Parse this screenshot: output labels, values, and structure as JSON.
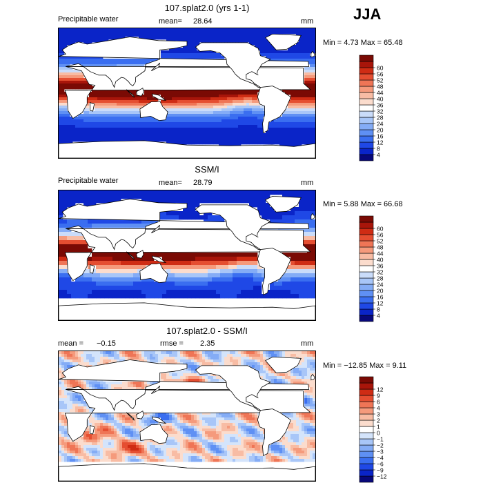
{
  "season": "JJA",
  "colors": {
    "full": [
      "#08087a",
      "#0a24c8",
      "#1f48e6",
      "#3a6ef0",
      "#5f90f4",
      "#84acf6",
      "#a8c6f8",
      "#cadcfa",
      "#ffffff",
      "#fbdccd",
      "#f8bca4",
      "#f59a7c",
      "#ef7556",
      "#e54e31",
      "#cf2c14",
      "#a8150a",
      "#7a0a04"
    ],
    "diff": [
      "#08087a",
      "#0a24c8",
      "#1f48e6",
      "#3a6ef0",
      "#5f90f4",
      "#84acf6",
      "#a8c6f8",
      "#d4e4fb",
      "#ffffff",
      "#fbdccd",
      "#f8bca4",
      "#f59a7c",
      "#ef7556",
      "#e54e31",
      "#cf2c14",
      "#a8150a",
      "#7a0a04"
    ]
  },
  "panels": [
    {
      "title": "107.splat2.0 (yrs 1-1)",
      "variable": "Precipitable water",
      "stat_label": "mean=",
      "stat_value": "28.64",
      "rmse_label": "",
      "rmse_value": "",
      "units": "mm",
      "minmax": "Min =   4.73  Max =   65.48",
      "colorbar": [
        "4",
        "8",
        "12",
        "16",
        "20",
        "24",
        "28",
        "32",
        "36",
        "40",
        "44",
        "48",
        "52",
        "56",
        "60"
      ],
      "kind": "full"
    },
    {
      "title": "SSM/I",
      "variable": "Precipitable water",
      "stat_label": "mean=",
      "stat_value": "28.79",
      "rmse_label": "",
      "rmse_value": "",
      "units": "mm",
      "minmax": "Min =   5.88  Max =   66.68",
      "colorbar": [
        "4",
        "8",
        "12",
        "16",
        "20",
        "24",
        "28",
        "32",
        "36",
        "40",
        "44",
        "48",
        "52",
        "56",
        "60"
      ],
      "kind": "obs"
    },
    {
      "title": "107.splat2.0 - SSM/I",
      "variable": "",
      "stat_label": "mean =",
      "stat_value": "−0.15",
      "rmse_label": "rmse =",
      "rmse_value": "2.35",
      "units": "mm",
      "minmax": "Min = −12.85  Max =    9.11",
      "colorbar": [
        "−12",
        "−9",
        "−6",
        "−4",
        "−3",
        "−2",
        "−1",
        "0",
        "1",
        "2",
        "3",
        "4",
        "6",
        "9",
        "12"
      ],
      "kind": "diff"
    }
  ],
  "chart_data": [
    {
      "type": "heatmap",
      "title": "107.splat2.0 (yrs 1-1)",
      "subtitle": "Precipitable water",
      "units": "mm",
      "mean": 28.64,
      "min": 4.73,
      "max": 65.48,
      "levels": [
        4,
        8,
        12,
        16,
        20,
        24,
        28,
        32,
        36,
        40,
        44,
        48,
        52,
        56,
        60
      ]
    },
    {
      "type": "heatmap",
      "title": "SSM/I",
      "subtitle": "Precipitable water",
      "units": "mm",
      "mean": 28.79,
      "min": 5.88,
      "max": 66.68,
      "levels": [
        4,
        8,
        12,
        16,
        20,
        24,
        28,
        32,
        36,
        40,
        44,
        48,
        52,
        56,
        60
      ]
    },
    {
      "type": "heatmap",
      "title": "107.splat2.0 - SSM/I",
      "units": "mm",
      "mean": -0.15,
      "rmse": 2.35,
      "min": -12.85,
      "max": 9.11,
      "levels": [
        -12,
        -9,
        -6,
        -4,
        -3,
        -2,
        -1,
        0,
        1,
        2,
        3,
        4,
        6,
        9,
        12
      ]
    }
  ]
}
